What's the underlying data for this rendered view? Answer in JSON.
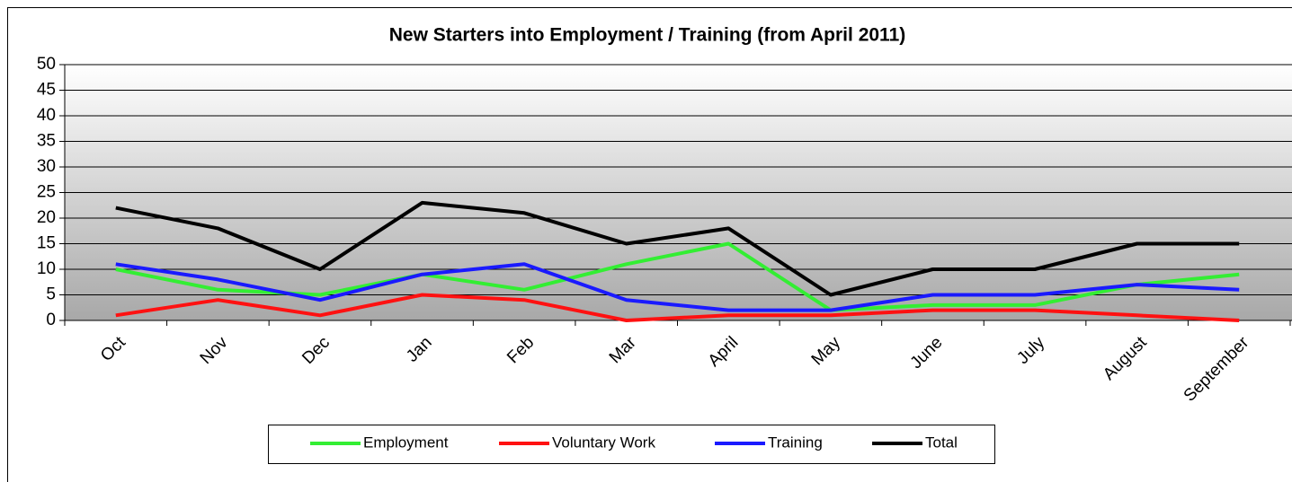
{
  "chart_data": {
    "type": "line",
    "title": "New Starters into Employment / Training (from April 2011)",
    "categories": [
      "Oct",
      "Nov",
      "Dec",
      "Jan",
      "Feb",
      "Mar",
      "April",
      "May",
      "June",
      "July",
      "August",
      "September"
    ],
    "series": [
      {
        "name": "Employment",
        "color": "#33ee33",
        "values": [
          10,
          6,
          5,
          9,
          6,
          11,
          15,
          2,
          3,
          3,
          7,
          9
        ]
      },
      {
        "name": "Voluntary Work",
        "color": "#ff1111",
        "values": [
          1,
          4,
          1,
          5,
          4,
          0,
          1,
          1,
          2,
          2,
          1,
          0
        ]
      },
      {
        "name": "Training",
        "color": "#1a1aff",
        "values": [
          11,
          8,
          4,
          9,
          11,
          4,
          2,
          2,
          5,
          5,
          7,
          6
        ]
      },
      {
        "name": "Total",
        "color": "#000000",
        "values": [
          22,
          18,
          10,
          23,
          21,
          15,
          18,
          5,
          10,
          10,
          15,
          15
        ]
      }
    ],
    "ylim": [
      0,
      50
    ],
    "yticks": [
      0,
      5,
      10,
      15,
      20,
      25,
      30,
      35,
      40,
      45,
      50
    ],
    "grid": true,
    "legend": "bottom"
  }
}
